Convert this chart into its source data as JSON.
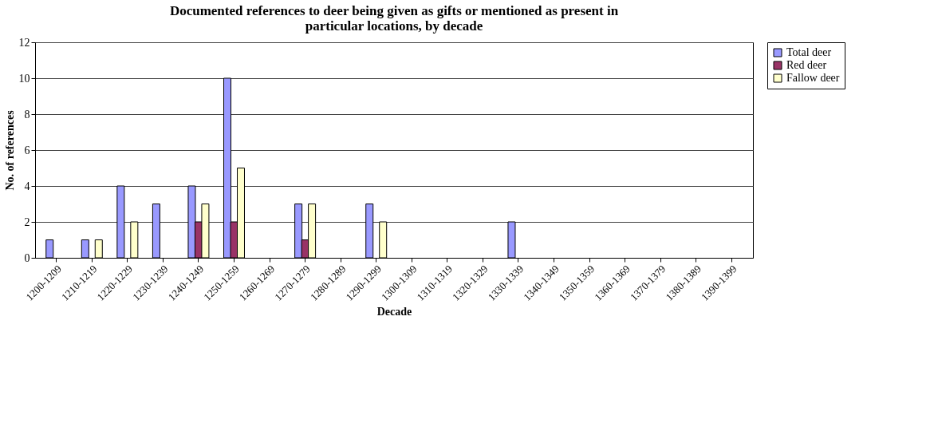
{
  "chart_data": {
    "type": "bar",
    "title": "Documented references to deer being given as gifts or mentioned as present in particular locations, by decade",
    "xlabel": "Decade",
    "ylabel": "No. of references",
    "categories": [
      "1200-1209",
      "1210-1219",
      "1220-1229",
      "1230-1239",
      "1240-1249",
      "1250-1259",
      "1260-1269",
      "1270-1279",
      "1280-1289",
      "1290-1299",
      "1300-1309",
      "1310-1319",
      "1320-1329",
      "1330-1339",
      "1340-1349",
      "1350-1359",
      "1360-1369",
      "1370-1379",
      "1380-1389",
      "1390-1399"
    ],
    "series": [
      {
        "name": "Total deer",
        "color": "#9999ff",
        "values": [
          1,
          1,
          4,
          3,
          4,
          10,
          0,
          3,
          0,
          3,
          0,
          0,
          0,
          2,
          0,
          0,
          0,
          0,
          0,
          0
        ]
      },
      {
        "name": "Red deer",
        "color": "#993366",
        "values": [
          0,
          0,
          0,
          0,
          2,
          2,
          0,
          1,
          0,
          0,
          0,
          0,
          0,
          0,
          0,
          0,
          0,
          0,
          0,
          0
        ]
      },
      {
        "name": "Fallow deer",
        "color": "#ffffcc",
        "values": [
          0,
          1,
          2,
          0,
          3,
          5,
          0,
          3,
          0,
          2,
          0,
          0,
          0,
          0,
          0,
          0,
          0,
          0,
          0,
          0
        ]
      }
    ],
    "ylim": [
      0,
      12
    ],
    "yticks": [
      0,
      2,
      4,
      6,
      8,
      10,
      12
    ],
    "grid": "y",
    "legend": "right"
  }
}
